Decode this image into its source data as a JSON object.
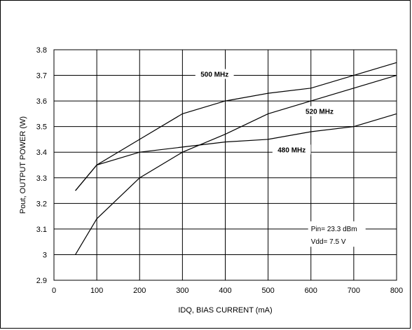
{
  "chart_data": {
    "type": "line",
    "title": "",
    "xlabel": "IDQ, BIAS CURRENT (mA)",
    "ylabel": "Pout, OUTPUT POWER (W)",
    "xlim": [
      0,
      800
    ],
    "ylim": [
      2.9,
      3.8
    ],
    "xticks": [
      0,
      100,
      200,
      300,
      400,
      500,
      600,
      700,
      800
    ],
    "yticks": [
      2.9,
      3,
      3.1,
      3.2,
      3.3,
      3.4,
      3.5,
      3.6,
      3.7,
      3.8
    ],
    "xtick_labels": [
      "0",
      "100",
      "200",
      "300",
      "400",
      "500",
      "600",
      "700",
      "800"
    ],
    "ytick_labels": [
      "2.9",
      "3",
      "3.1",
      "3.2",
      "3.3",
      "3.4",
      "3.5",
      "3.6",
      "3.7",
      "3.8"
    ],
    "grid": true,
    "series": [
      {
        "name": "500 MHz",
        "x": [
          50,
          100,
          200,
          300,
          400,
          500,
          600,
          700,
          800
        ],
        "y": [
          3.25,
          3.35,
          3.45,
          3.55,
          3.6,
          3.63,
          3.65,
          3.7,
          3.75
        ]
      },
      {
        "name": "520 MHz",
        "x": [
          50,
          100,
          200,
          300,
          400,
          500,
          600,
          700,
          800
        ],
        "y": [
          3.0,
          3.14,
          3.3,
          3.4,
          3.47,
          3.55,
          3.6,
          3.65,
          3.7
        ]
      },
      {
        "name": "480 MHz",
        "x": [
          50,
          100,
          200,
          300,
          400,
          500,
          600,
          700,
          800
        ],
        "y": [
          3.25,
          3.35,
          3.4,
          3.42,
          3.44,
          3.45,
          3.48,
          3.5,
          3.55
        ]
      }
    ],
    "series_labels": [
      {
        "text": "500 MHz",
        "x": 375,
        "y": 3.7
      },
      {
        "text": "520 MHz",
        "x": 620,
        "y": 3.555
      },
      {
        "text": "480 MHz",
        "x": 555,
        "y": 3.405
      }
    ],
    "annotations": [
      {
        "text": "Pin= 23.3 dBm",
        "x": 600,
        "y": 3.1
      },
      {
        "text": "Vdd= 7.5 V",
        "x": 600,
        "y": 3.05
      }
    ]
  }
}
